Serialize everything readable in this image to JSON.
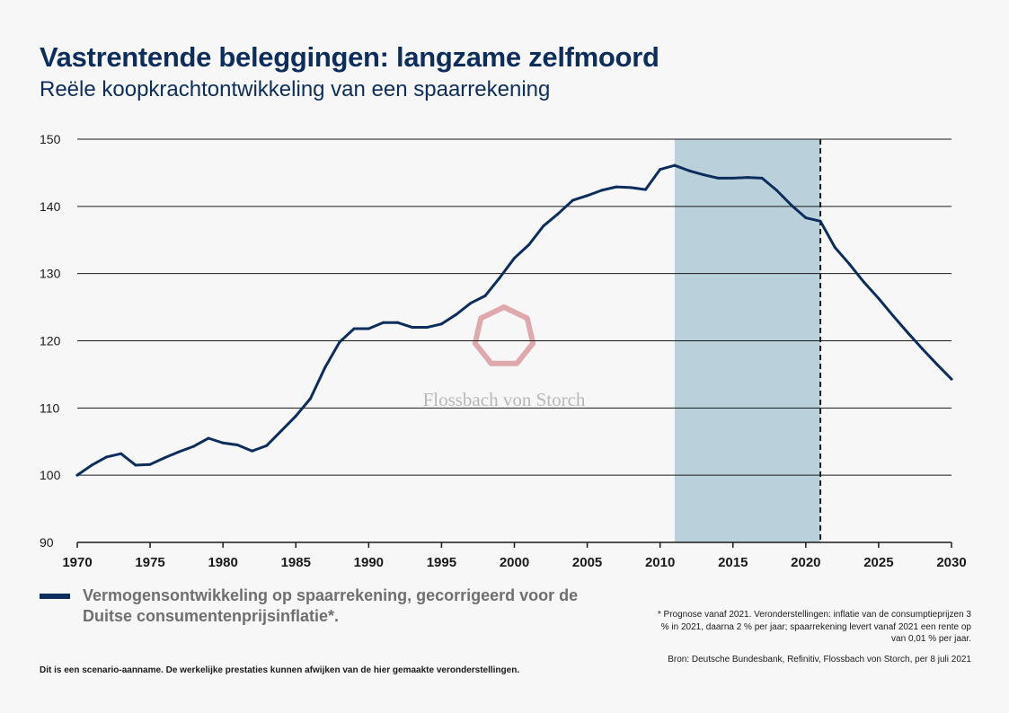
{
  "header": {
    "title": "Vastrentende beleggingen: langzame zelfmoord",
    "subtitle": "Reële koopkrachtontwikkeling van een spaarrekening"
  },
  "watermark": {
    "text": "Flossbach von Storch",
    "color": "#d99aa0",
    "icon": "heptagon-logo-icon"
  },
  "legend": {
    "text": "Vermogensontwikkeling op spaarrekening, gecorrigeerd voor de Duitse consumentenprijsinflatie*.",
    "color": "#0d2d5c"
  },
  "footnote": "* Prognose vanaf 2021. Veronderstellingen: inflatie van de consumptieprijzen 3 % in 2021, daarna 2 % per jaar; spaarrekening levert vanaf 2021 een rente op van 0,01 % per jaar.",
  "source": "Bron: Deutsche Bundesbank, Refinitiv, Flossbach von Storch, per 8 juli 2021",
  "disclaimer": "Dit is een scenario-aanname. De werkelijke prestaties kunnen afwijken van de hier gemaakte veronderstellingen.",
  "chart_data": {
    "type": "line",
    "title": "",
    "xlabel": "",
    "ylabel": "",
    "xlim": [
      1970,
      2030
    ],
    "ylim": [
      90,
      150
    ],
    "xticks": [
      1970,
      1975,
      1980,
      1985,
      1990,
      1995,
      2000,
      2005,
      2010,
      2015,
      2020,
      2025,
      2030
    ],
    "yticks": [
      90,
      100,
      110,
      120,
      130,
      140,
      150
    ],
    "grid": "horizontal",
    "shaded_region": {
      "x": [
        2011,
        2021
      ],
      "color": "#bad1dc"
    },
    "dashed_vline": {
      "x": 2021
    },
    "colors": {
      "line": "#0d2d5c",
      "grid": "#1a1a1a"
    },
    "series": [
      {
        "name": "Vermogensontwikkeling op spaarrekening, gecorrigeerd voor de Duitse consumentenprijsinflatie*",
        "x": [
          1970,
          1971,
          1972,
          1973,
          1974,
          1975,
          1976,
          1977,
          1978,
          1979,
          1980,
          1981,
          1982,
          1983,
          1984,
          1985,
          1986,
          1987,
          1988,
          1989,
          1990,
          1991,
          1992,
          1993,
          1994,
          1995,
          1996,
          1997,
          1998,
          1999,
          2000,
          2001,
          2002,
          2003,
          2004,
          2005,
          2006,
          2007,
          2008,
          2009,
          2010,
          2011,
          2012,
          2013,
          2014,
          2015,
          2016,
          2017,
          2018,
          2019,
          2020,
          2021,
          2022,
          2023,
          2024,
          2025,
          2026,
          2027,
          2028,
          2029,
          2030
        ],
        "values": [
          100,
          101.5,
          102.7,
          103.2,
          101.5,
          101.6,
          102.6,
          103.5,
          104.3,
          105.5,
          104.8,
          104.5,
          103.6,
          104.4,
          106.6,
          108.8,
          111.4,
          116,
          119.8,
          121.8,
          121.8,
          122.7,
          122.7,
          122,
          122,
          122.5,
          123.9,
          125.6,
          126.7,
          129.4,
          132.3,
          134.3,
          137.1,
          138.9,
          140.9,
          141.6,
          142.4,
          142.9,
          142.8,
          142.5,
          145.5,
          146.1,
          145.3,
          144.7,
          144.2,
          144.2,
          144.3,
          144.2,
          142.4,
          140.2,
          138.3,
          137.8,
          133.9,
          131.4,
          128.7,
          126.3,
          123.7,
          121.2,
          118.8,
          116.5,
          114.3
        ]
      }
    ]
  }
}
